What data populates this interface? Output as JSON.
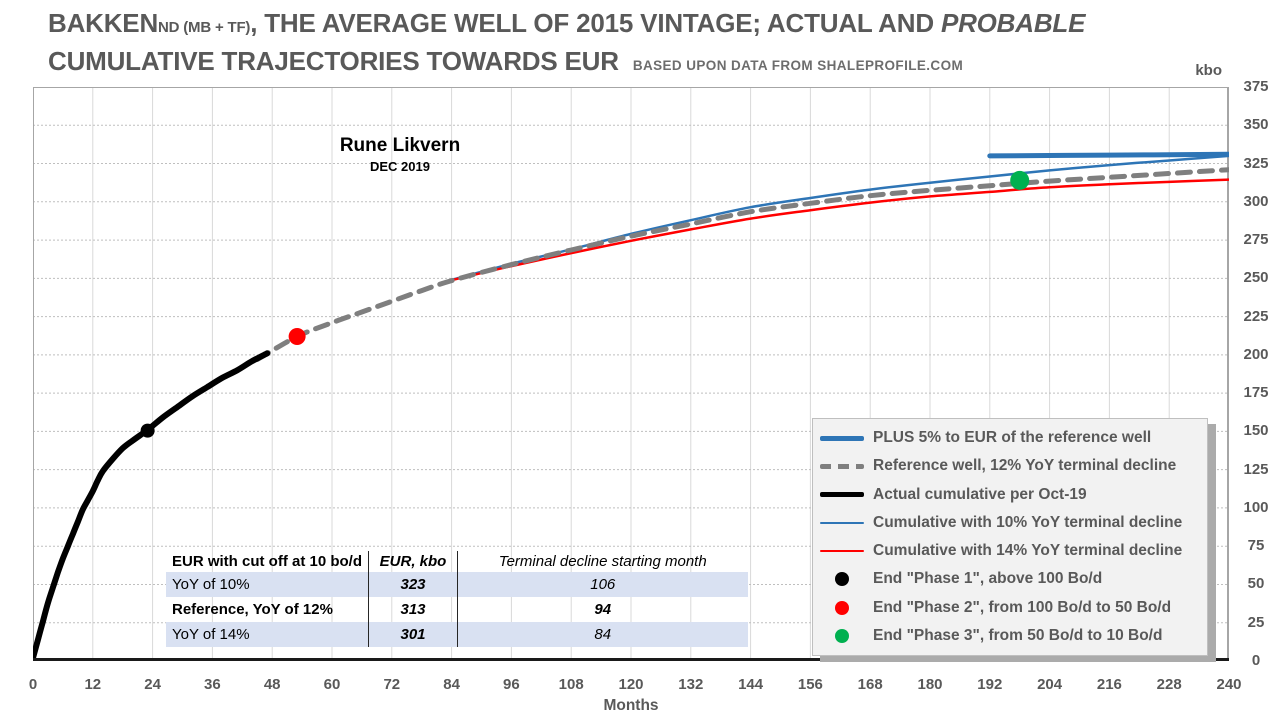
{
  "title": {
    "main_prefix": "BAKKEN",
    "main_sub": "ND (MB + TF)",
    "main_rest": ", THE AVERAGE WELL OF 2015 VINTAGE; ACTUAL AND ",
    "main_italic": "PROBABLE",
    "line2": "CUMULATIVE TRAJECTORIES TOWARDS EUR",
    "source_note": "BASED UPON DATA FROM SHALEPROFILE.COM"
  },
  "annotation": {
    "author": "Rune Likvern",
    "date": "DEC 2019"
  },
  "axes": {
    "y_unit": "kbo",
    "x_title": "Months"
  },
  "colors": {
    "blue": "#2E75B6",
    "red": "#FF0000",
    "gray": "#7F7F7F",
    "black": "#000000",
    "green": "#00B050",
    "grid_v": "#D9D9D9",
    "grid_h": "#BFBFBF",
    "frame": "#A6A6A6",
    "axis_dark": "#1a1a1a",
    "text_gray": "#595959",
    "table_row_bg": "#D9E1F2",
    "legend_bg": "#F2F2F2"
  },
  "legend": {
    "items": [
      {
        "swatch": "line-thick",
        "color": "#2E75B6",
        "label": "PLUS 5% to EUR of the reference well"
      },
      {
        "swatch": "line-dashed",
        "color": "#7F7F7F",
        "label": "Reference well, 12% YoY terminal decline"
      },
      {
        "swatch": "line-thick",
        "color": "#000000",
        "label": "Actual cumulative per Oct-19"
      },
      {
        "swatch": "line-thin",
        "color": "#2E75B6",
        "label": "Cumulative with 10% YoY terminal decline"
      },
      {
        "swatch": "line-thin",
        "color": "#FF0000",
        "label": "Cumulative with 14% YoY terminal decline"
      },
      {
        "swatch": "dot",
        "color": "#000000",
        "label": "End \"Phase 1\", above 100 Bo/d"
      },
      {
        "swatch": "dot",
        "color": "#FF0000",
        "label": "End \"Phase 2\", from 100 Bo/d to 50 Bo/d"
      },
      {
        "swatch": "dot",
        "color": "#00B050",
        "label": "End \"Phase 3\", from 50 Bo/d to 10 Bo/d"
      }
    ]
  },
  "table": {
    "headers": [
      "EUR with cut off at 10 bo/d",
      "EUR, kbo",
      "Terminal decline starting month"
    ],
    "rows": [
      {
        "label": "YoY of 10%",
        "eur_kbo": "323",
        "start_month": "106",
        "highlight": true,
        "bold": false
      },
      {
        "label": "Reference, YoY of 12%",
        "eur_kbo": "313",
        "start_month": "94",
        "highlight": false,
        "bold": true
      },
      {
        "label": "YoY of 14%",
        "eur_kbo": "301",
        "start_month": "84",
        "highlight": true,
        "bold": false
      }
    ]
  },
  "chart_data": {
    "type": "line",
    "title": "Bakken ND average well of 2015 vintage, cumulative trajectories towards EUR",
    "xlabel": "Months",
    "ylabel": "kbo",
    "xlim": [
      0,
      240
    ],
    "ylim": [
      0,
      375
    ],
    "x_tick_step": 12,
    "y_tick_step": 25,
    "grid": true,
    "legend_position": "lower right",
    "series": [
      {
        "name": "Cumulative with 10% YoY terminal decline",
        "color": "#2E75B6",
        "width": 2.5,
        "dash": null,
        "points": [
          [
            84,
            249
          ],
          [
            96,
            259.5
          ],
          [
            108,
            269
          ],
          [
            120,
            279
          ],
          [
            132,
            288
          ],
          [
            144,
            296.5
          ],
          [
            156,
            302.5
          ],
          [
            168,
            308
          ],
          [
            180,
            312.5
          ],
          [
            192,
            316.5
          ],
          [
            204,
            320.5
          ],
          [
            216,
            324
          ],
          [
            228,
            327
          ],
          [
            240,
            330
          ]
        ]
      },
      {
        "name": "Cumulative with 14% YoY terminal decline",
        "color": "#FF0000",
        "width": 2.5,
        "dash": null,
        "points": [
          [
            83,
            248
          ],
          [
            96,
            258
          ],
          [
            108,
            266.5
          ],
          [
            120,
            274.5
          ],
          [
            132,
            282
          ],
          [
            144,
            289
          ],
          [
            156,
            294.5
          ],
          [
            168,
            299.5
          ],
          [
            180,
            303.5
          ],
          [
            192,
            306.5
          ],
          [
            204,
            309.5
          ],
          [
            216,
            311.5
          ],
          [
            228,
            313
          ],
          [
            240,
            314.5
          ]
        ]
      },
      {
        "name": "Reference well, 12% YoY terminal decline",
        "color": "#7F7F7F",
        "width": 5,
        "dash": "13 9",
        "points": [
          [
            45,
            197
          ],
          [
            53,
            212
          ],
          [
            60,
            221
          ],
          [
            66,
            228
          ],
          [
            72,
            235
          ],
          [
            78,
            242
          ],
          [
            84,
            248.5
          ],
          [
            96,
            259
          ],
          [
            108,
            268.5
          ],
          [
            120,
            277.5
          ],
          [
            132,
            285.5
          ],
          [
            144,
            293.5
          ],
          [
            156,
            299
          ],
          [
            168,
            304
          ],
          [
            180,
            307.5
          ],
          [
            192,
            310.5
          ],
          [
            204,
            313.5
          ],
          [
            216,
            316
          ],
          [
            228,
            318.5
          ],
          [
            240,
            321
          ]
        ]
      },
      {
        "name": "Actual cumulative per Oct-19",
        "color": "#000000",
        "width": 6,
        "dash": null,
        "points": [
          [
            0,
            2
          ],
          [
            1,
            14
          ],
          [
            2,
            26
          ],
          [
            3,
            38
          ],
          [
            4,
            48
          ],
          [
            5,
            58
          ],
          [
            6,
            67
          ],
          [
            7,
            75
          ],
          [
            8,
            83
          ],
          [
            9,
            91
          ],
          [
            10,
            99
          ],
          [
            11,
            105
          ],
          [
            12,
            111
          ],
          [
            13,
            118
          ],
          [
            14,
            124
          ],
          [
            16,
            132
          ],
          [
            18,
            139
          ],
          [
            20,
            144
          ],
          [
            23,
            151
          ],
          [
            26,
            159
          ],
          [
            29,
            166
          ],
          [
            32,
            173
          ],
          [
            35,
            179
          ],
          [
            38,
            185
          ],
          [
            41,
            190
          ],
          [
            44,
            196
          ],
          [
            47,
            201
          ]
        ]
      },
      {
        "name": "PLUS 5% to EUR of the reference well",
        "color": "#2E75B6",
        "width": 5,
        "dash": null,
        "points": [
          [
            192,
            330
          ],
          [
            216,
            330.5
          ],
          [
            240,
            331
          ]
        ]
      }
    ],
    "markers": [
      {
        "name": "End \"Phase 1\", above 100 Bo/d",
        "color": "#000000",
        "x": 23,
        "y": 150.5,
        "r": 7
      },
      {
        "name": "End \"Phase 2\", from 100 Bo/d to 50 Bo/d",
        "color": "#FF0000",
        "x": 53,
        "y": 212,
        "r": 8.5
      },
      {
        "name": "End \"Phase 3\", from 50 Bo/d to 10 Bo/d",
        "color": "#00B050",
        "x": 198,
        "y": 314,
        "r": 9.5
      }
    ]
  }
}
